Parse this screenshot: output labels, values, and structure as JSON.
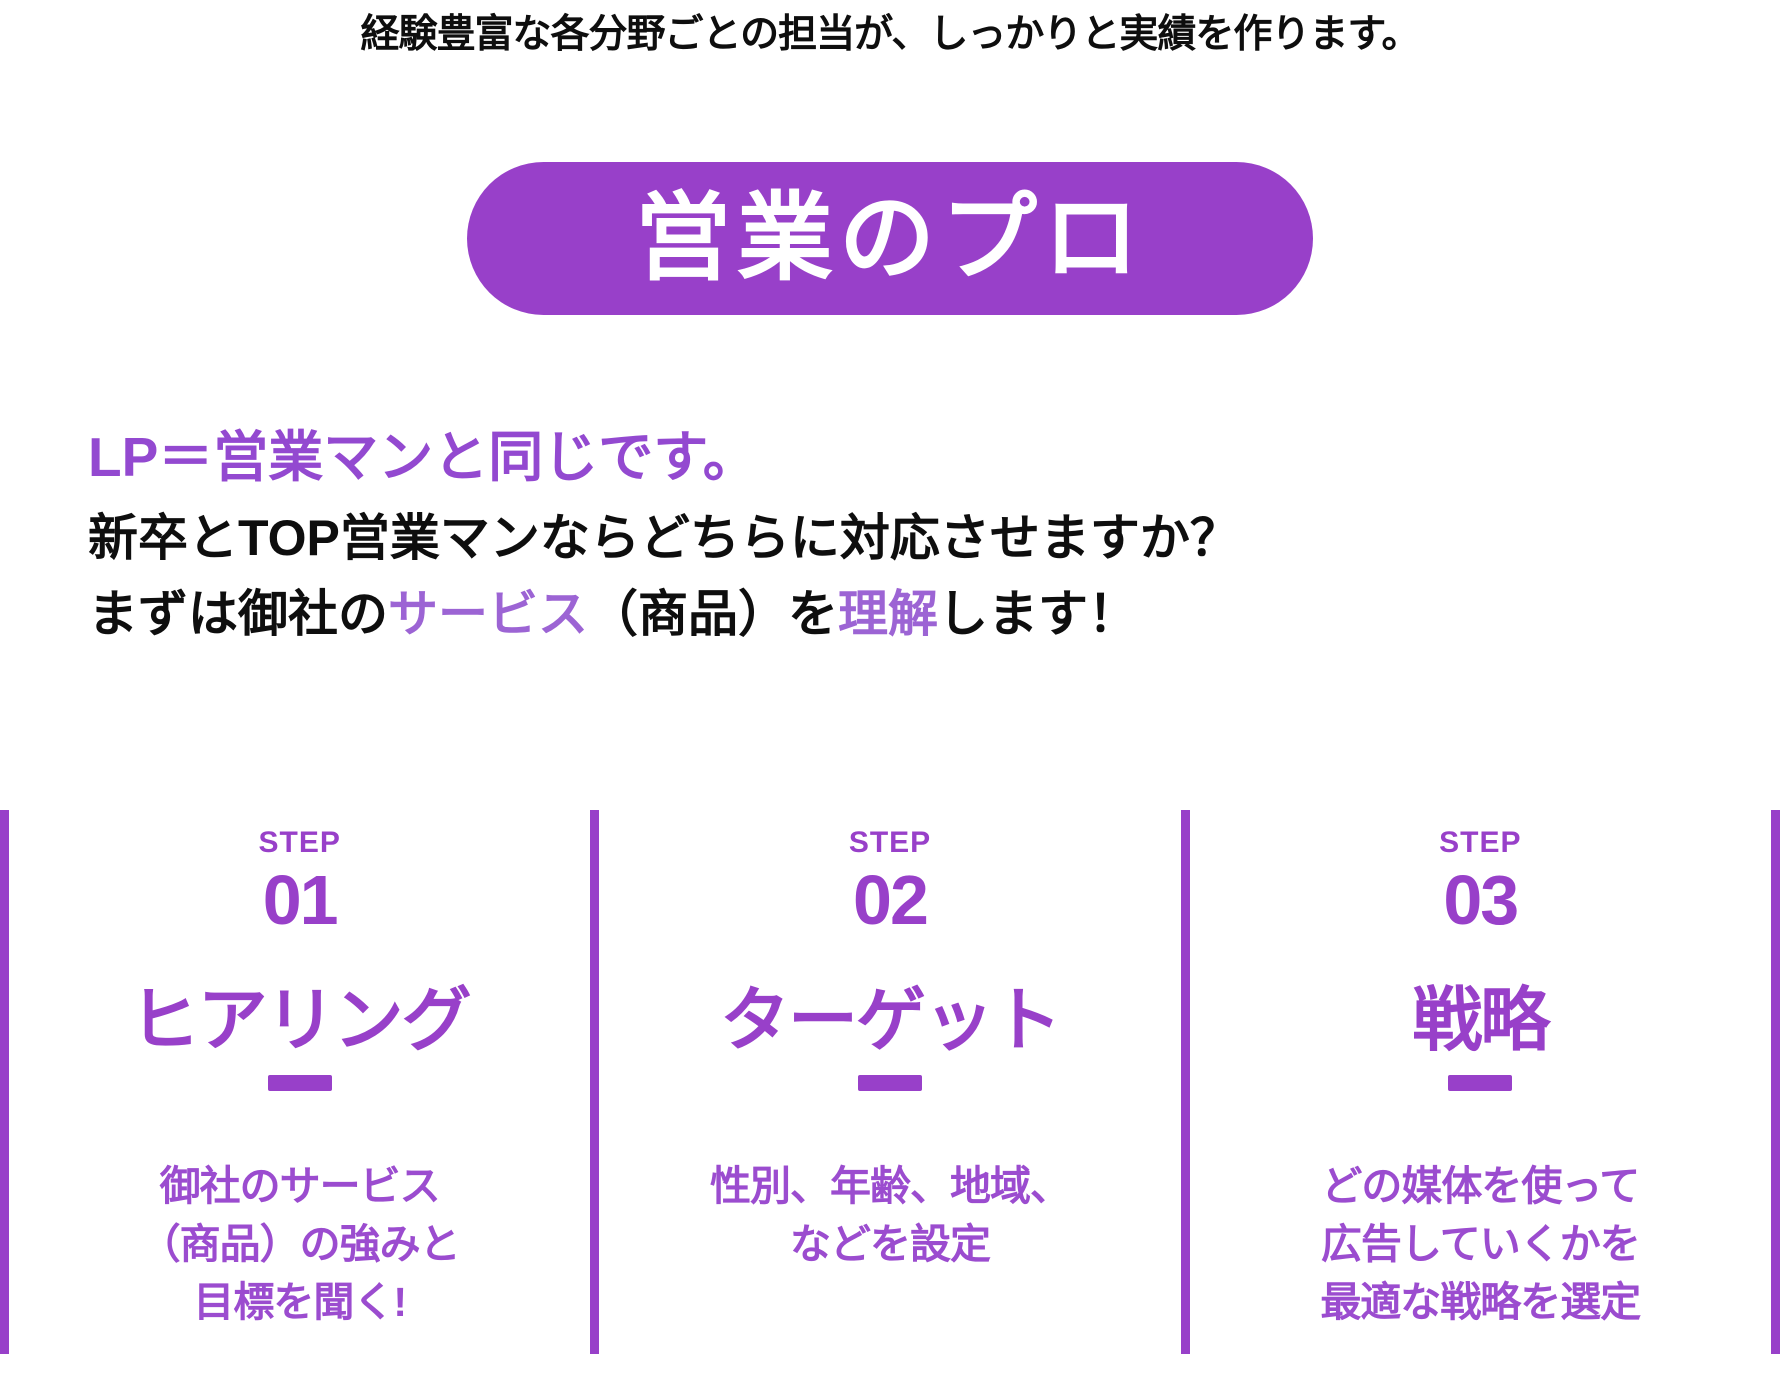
{
  "intro": {
    "line": "経験豊富な各分野ごとの担当が、しっかりと実績を作ります。"
  },
  "badge": {
    "label": "営業のプロ"
  },
  "pitch": {
    "heading": "LP＝営業マンと同じです。",
    "line1": "新卒とTOP営業マンならどちらに対応させますか？",
    "line2_parts": {
      "a": "まずは御社の",
      "b": "サービス",
      "c": "（商品）を",
      "d": "理解",
      "e": "します！"
    }
  },
  "steps": [
    {
      "label": "STEP",
      "number": "01",
      "title": "ヒアリング",
      "body_lines": [
        "御社のサービス",
        "（商品）の強みと",
        "目標を聞く!"
      ]
    },
    {
      "label": "STEP",
      "number": "02",
      "title": "ターゲット",
      "body_lines": [
        "性別、年齢、地域、",
        "などを設定"
      ]
    },
    {
      "label": "STEP",
      "number": "03",
      "title": "戦略",
      "body_lines": [
        "どの媒体を使って",
        "広告していくかを",
        "最適な戦略を選定"
      ]
    }
  ],
  "colors": {
    "accent": "#9840c9",
    "heading": "#9349d0",
    "highlight": "#9c64d4",
    "stepbody": "#9b4ccf",
    "text": "#0e0e0e"
  }
}
